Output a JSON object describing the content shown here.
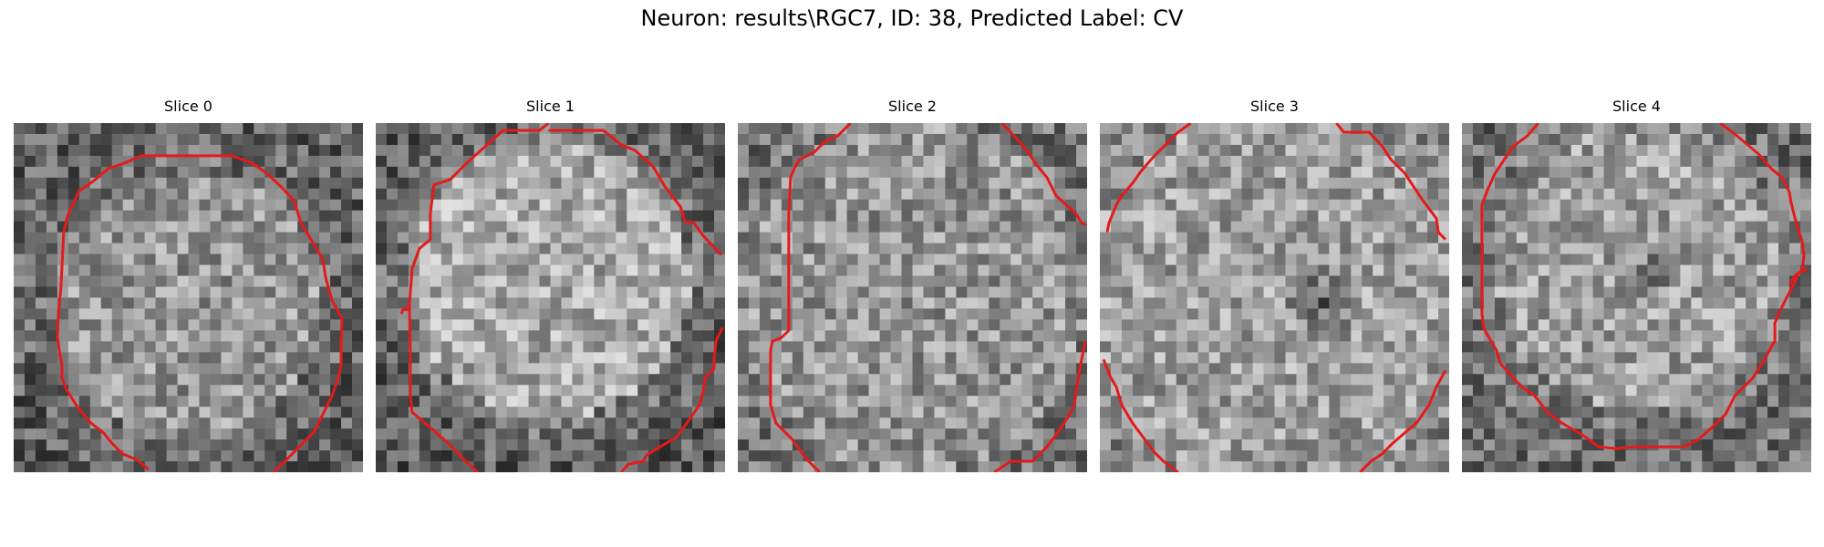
{
  "figure": {
    "title": "Neuron: results\\RGC7, ID: 38, Predicted Label: CV",
    "contour_color": "#e41a1c"
  },
  "panels": [
    {
      "title": "Slice 0"
    },
    {
      "title": "Slice 1"
    },
    {
      "title": "Slice 2"
    },
    {
      "title": "Slice 3"
    },
    {
      "title": "Slice 4"
    }
  ]
}
